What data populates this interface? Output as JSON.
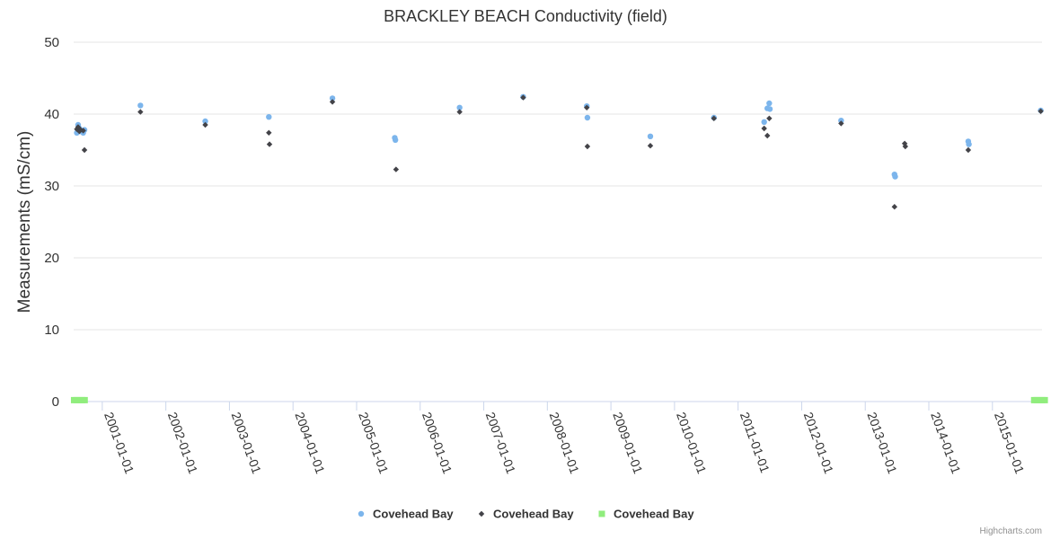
{
  "chart_data": {
    "type": "scatter",
    "title": "BRACKLEY BEACH Conductivity (field)",
    "xlabel": "",
    "ylabel": "Measurements (mS/cm)",
    "ylim": [
      0,
      50
    ],
    "yticks": [
      0,
      10,
      20,
      30,
      40,
      50
    ],
    "xlim": [
      2000.55,
      2015.78
    ],
    "xticks": [
      {
        "value": 2001.0,
        "label": "2001-01-01"
      },
      {
        "value": 2002.0,
        "label": "2002-01-01"
      },
      {
        "value": 2003.0,
        "label": "2003-01-01"
      },
      {
        "value": 2004.0,
        "label": "2004-01-01"
      },
      {
        "value": 2005.0,
        "label": "2005-01-01"
      },
      {
        "value": 2006.0,
        "label": "2006-01-01"
      },
      {
        "value": 2007.0,
        "label": "2007-01-01"
      },
      {
        "value": 2008.0,
        "label": "2008-01-01"
      },
      {
        "value": 2009.0,
        "label": "2009-01-01"
      },
      {
        "value": 2010.0,
        "label": "2010-01-01"
      },
      {
        "value": 2011.0,
        "label": "2011-01-01"
      },
      {
        "value": 2012.0,
        "label": "2012-01-01"
      },
      {
        "value": 2013.0,
        "label": "2013-01-01"
      },
      {
        "value": 2014.0,
        "label": "2014-01-01"
      },
      {
        "value": 2015.0,
        "label": "2015-01-01"
      }
    ],
    "series": [
      {
        "name": "Covehead Bay",
        "marker": "circle",
        "color": "#7cb5ec",
        "points": [
          [
            2000.6,
            37.4
          ],
          [
            2000.62,
            38.5
          ],
          [
            2000.64,
            38.0
          ],
          [
            2000.66,
            37.6
          ],
          [
            2000.7,
            37.4
          ],
          [
            2000.72,
            37.8
          ],
          [
            2001.6,
            41.2
          ],
          [
            2002.62,
            39.0
          ],
          [
            2003.62,
            39.6
          ],
          [
            2004.62,
            42.2
          ],
          [
            2005.6,
            36.7
          ],
          [
            2005.61,
            36.4
          ],
          [
            2006.62,
            40.9
          ],
          [
            2007.62,
            42.4
          ],
          [
            2008.62,
            41.1
          ],
          [
            2008.63,
            39.5
          ],
          [
            2009.62,
            36.9
          ],
          [
            2010.62,
            39.5
          ],
          [
            2011.41,
            38.9
          ],
          [
            2011.46,
            40.8
          ],
          [
            2011.49,
            41.5
          ],
          [
            2011.5,
            40.7
          ],
          [
            2012.62,
            39.1
          ],
          [
            2013.46,
            31.6
          ],
          [
            2013.47,
            31.3
          ],
          [
            2014.62,
            36.2
          ],
          [
            2014.63,
            35.8
          ],
          [
            2015.76,
            40.5
          ]
        ]
      },
      {
        "name": "Covehead Bay",
        "marker": "diamond",
        "color": "#434348",
        "points": [
          [
            2000.6,
            37.9
          ],
          [
            2000.62,
            38.2
          ],
          [
            2000.64,
            37.6
          ],
          [
            2000.66,
            37.8
          ],
          [
            2000.7,
            37.7
          ],
          [
            2000.72,
            35.0
          ],
          [
            2001.6,
            40.3
          ],
          [
            2002.62,
            38.5
          ],
          [
            2003.62,
            37.4
          ],
          [
            2003.63,
            35.8
          ],
          [
            2004.62,
            41.7
          ],
          [
            2005.62,
            32.3
          ],
          [
            2006.62,
            40.3
          ],
          [
            2007.62,
            42.3
          ],
          [
            2008.62,
            40.9
          ],
          [
            2008.63,
            35.5
          ],
          [
            2009.62,
            35.6
          ],
          [
            2010.62,
            39.4
          ],
          [
            2011.41,
            38.0
          ],
          [
            2011.46,
            37.0
          ],
          [
            2011.49,
            39.4
          ],
          [
            2012.62,
            38.7
          ],
          [
            2013.46,
            27.1
          ],
          [
            2013.62,
            35.9
          ],
          [
            2013.63,
            35.5
          ],
          [
            2014.62,
            35.0
          ],
          [
            2015.76,
            40.4
          ]
        ]
      },
      {
        "name": "Covehead Bay",
        "marker": "square",
        "color": "#90ed7d",
        "points": [
          [
            2000.62,
            0.2
          ],
          [
            2000.66,
            0.2
          ],
          [
            2015.72,
            0.2
          ],
          [
            2015.76,
            0.2
          ]
        ]
      }
    ],
    "legend": "bottom-center",
    "grid": true
  },
  "credits": "Highcharts.com"
}
